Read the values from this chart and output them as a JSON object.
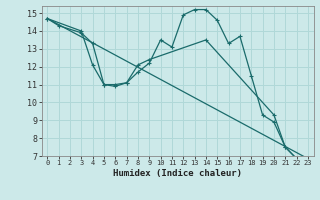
{
  "title": "",
  "xlabel": "Humidex (Indice chaleur)",
  "ylabel": "",
  "bg_color": "#cce9e9",
  "line_color": "#1a6b6b",
  "grid_color": "#b0d8d8",
  "xlim": [
    -0.5,
    23.5
  ],
  "ylim": [
    7,
    15.4
  ],
  "yticks": [
    7,
    8,
    9,
    10,
    11,
    12,
    13,
    14,
    15
  ],
  "xticks": [
    0,
    1,
    2,
    3,
    4,
    5,
    6,
    7,
    8,
    9,
    10,
    11,
    12,
    13,
    14,
    15,
    16,
    17,
    18,
    19,
    20,
    21,
    22,
    23
  ],
  "series1_x": [
    0,
    1,
    3,
    4,
    5,
    6,
    7,
    8,
    9,
    10,
    11,
    12,
    13,
    14,
    15,
    16,
    17,
    18,
    19,
    20,
    21,
    22,
    23
  ],
  "series1_y": [
    14.7,
    14.3,
    13.9,
    13.3,
    11.0,
    10.9,
    11.1,
    11.7,
    12.2,
    13.5,
    13.1,
    14.9,
    15.2,
    15.2,
    14.6,
    13.3,
    13.7,
    11.5,
    9.3,
    8.9,
    7.5,
    6.85,
    6.85
  ],
  "series2_x": [
    0,
    3,
    4,
    5,
    6,
    7,
    8,
    9,
    14,
    20,
    21,
    22,
    23
  ],
  "series2_y": [
    14.7,
    14.0,
    12.1,
    11.0,
    11.0,
    11.1,
    12.1,
    12.4,
    13.5,
    9.3,
    7.5,
    6.85,
    6.85
  ],
  "series3_x": [
    0,
    23
  ],
  "series3_y": [
    14.7,
    6.85
  ]
}
